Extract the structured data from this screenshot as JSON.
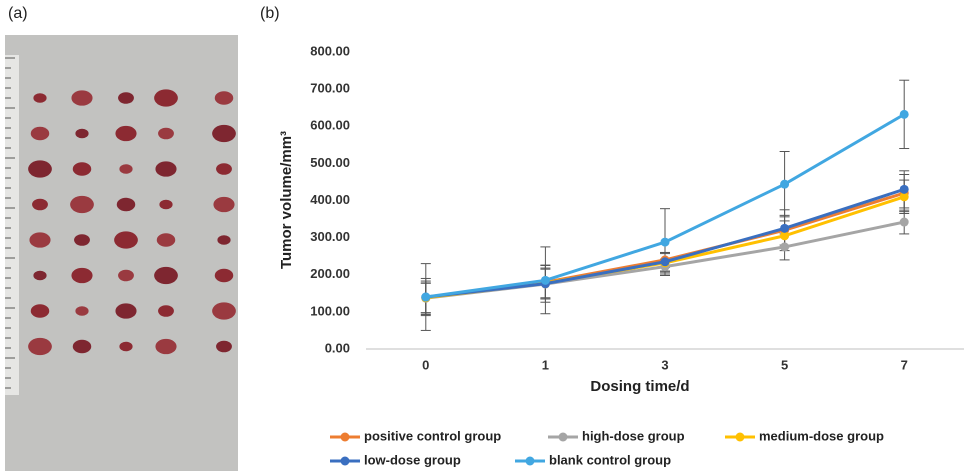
{
  "panel_labels": [
    "(a)",
    "(b)"
  ],
  "chart_data": {
    "type": "line",
    "x_label": "Dosing time/d",
    "y_label": "Tumor volume/mm³",
    "categories": [
      "0",
      "1",
      "3",
      "5",
      "7"
    ],
    "ylim": [
      0,
      800
    ],
    "yticks": [
      {
        "value": 0,
        "label": "0.00"
      },
      {
        "value": 100,
        "label": "100.00"
      },
      {
        "value": 200,
        "label": "200.00"
      },
      {
        "value": 300,
        "label": "300.00"
      },
      {
        "value": 400,
        "label": "400.00"
      },
      {
        "value": 500,
        "label": "500.00"
      },
      {
        "value": 600,
        "label": "600.00"
      },
      {
        "value": 700,
        "label": "700.00"
      },
      {
        "value": 800,
        "label": "800.00"
      }
    ],
    "grid": false,
    "legend": "bottom",
    "series": [
      {
        "name": "positive control group",
        "color": "#ed7d31",
        "values": [
          138,
          180,
          240,
          320,
          420
        ],
        "errors": [
          40,
          45,
          20,
          40,
          50
        ]
      },
      {
        "name": "high-dose group",
        "color": "#a5a5a5",
        "values": [
          137,
          175,
          222,
          275,
          342
        ],
        "errors": [
          40,
          40,
          20,
          35,
          32
        ]
      },
      {
        "name": "medium-dose group",
        "color": "#ffc000",
        "values": [
          138,
          178,
          232,
          305,
          410
        ],
        "errors": [
          45,
          40,
          25,
          40,
          45
        ]
      },
      {
        "name": "low-dose group",
        "color": "#3a6fc0",
        "values": [
          140,
          176,
          235,
          325,
          430
        ],
        "errors": [
          50,
          50,
          25,
          50,
          50
        ]
      },
      {
        "name": "blank control group",
        "color": "#41a7e1",
        "values": [
          140,
          185,
          288,
          444,
          632
        ],
        "errors": [
          90,
          90,
          90,
          88,
          92
        ]
      }
    ]
  }
}
